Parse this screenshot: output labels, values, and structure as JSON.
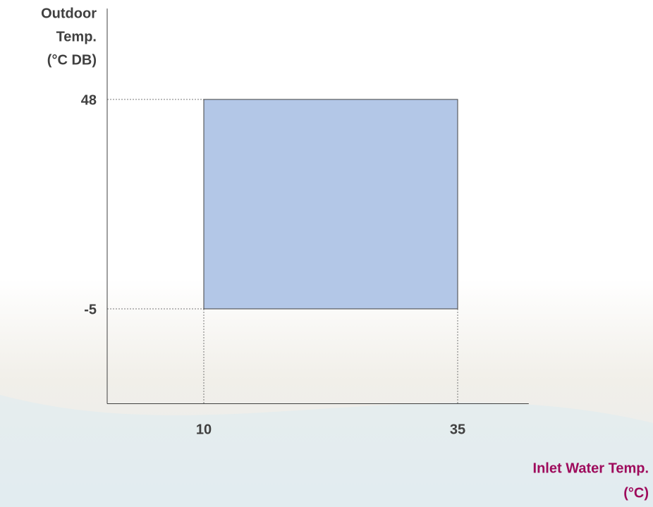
{
  "chart_data": {
    "type": "range",
    "y_label": [
      "Outdoor",
      "Temp.",
      "(°C DB)"
    ],
    "x_label": [
      "Inlet Water Temp.",
      "(°C)"
    ],
    "x": [
      10,
      35
    ],
    "y": [
      -5,
      48
    ],
    "color": "#b3c7e7",
    "xlim": [
      0,
      42
    ],
    "ylim": [
      -29,
      71
    ],
    "xticks": [
      10,
      35
    ],
    "yticks": [
      -5,
      48
    ],
    "grid": true
  }
}
